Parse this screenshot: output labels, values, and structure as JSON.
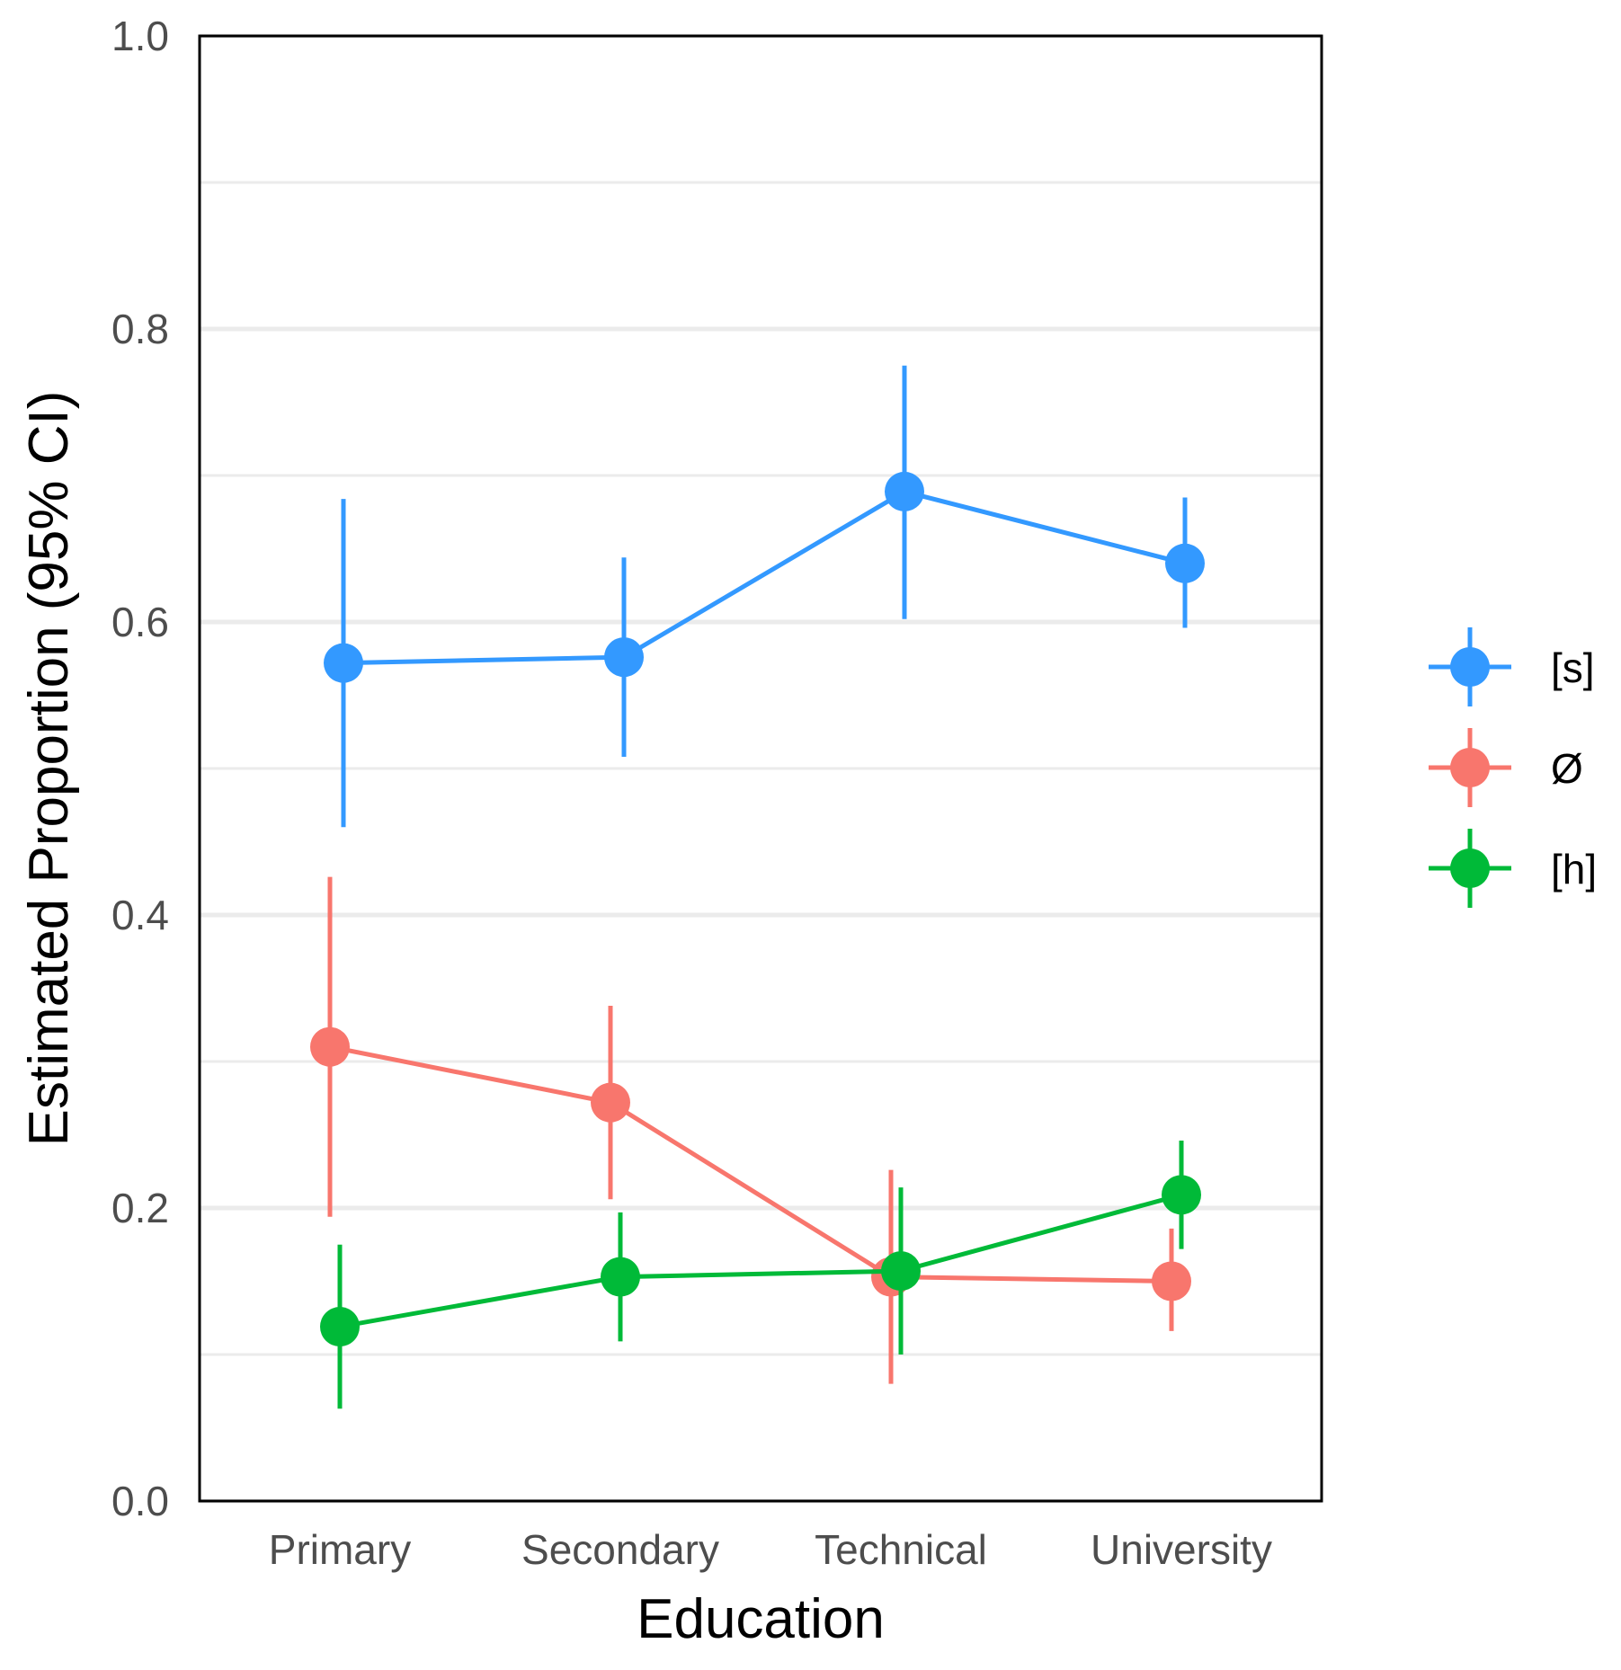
{
  "chart_data": {
    "type": "line",
    "title": "",
    "xlabel": "Education",
    "ylabel": "Estimated Proportion (95% CI)",
    "categories": [
      "Primary",
      "Secondary",
      "Technical",
      "University"
    ],
    "ylim": [
      0,
      1
    ],
    "yticks": [
      0.0,
      0.2,
      0.4,
      0.6,
      0.8,
      1.0
    ],
    "ytick_labels": [
      "0.0",
      "0.2",
      "0.4",
      "0.6",
      "0.8",
      "1.0"
    ],
    "grid": true,
    "legend_position": "right",
    "series": [
      {
        "name": "[s]",
        "color": "#3399ff",
        "values": [
          0.572,
          0.576,
          0.689,
          0.64
        ],
        "lower": [
          0.46,
          0.508,
          0.602,
          0.596
        ],
        "upper": [
          0.684,
          0.644,
          0.775,
          0.685
        ]
      },
      {
        "name": "Ø",
        "color": "#f8766d",
        "values": [
          0.31,
          0.272,
          0.153,
          0.15
        ],
        "lower": [
          0.194,
          0.206,
          0.08,
          0.116
        ],
        "upper": [
          0.426,
          0.338,
          0.226,
          0.186
        ]
      },
      {
        "name": "[h]",
        "color": "#00ba38",
        "values": [
          0.119,
          0.153,
          0.157,
          0.209
        ],
        "lower": [
          0.063,
          0.109,
          0.1,
          0.172
        ],
        "upper": [
          0.175,
          0.197,
          0.214,
          0.246
        ]
      }
    ]
  }
}
